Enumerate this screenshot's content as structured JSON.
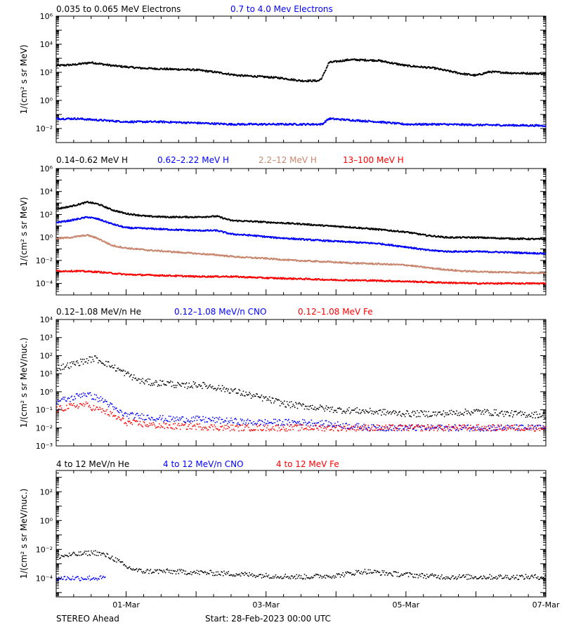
{
  "footer": {
    "spacecraft": "STEREO Ahead",
    "start": "Start: 28-Feb-2023 00:00 UTC"
  },
  "chart_data": [
    {
      "type": "line",
      "yscale": "log",
      "ylabel": "1/(cm² s sr MeV)",
      "ylim": [
        0.001,
        1000000
      ],
      "yticks": [
        {
          "value": 0.01,
          "label": "10⁻²"
        },
        {
          "value": 1,
          "label": "10⁰"
        },
        {
          "value": 100,
          "label": "10²"
        },
        {
          "value": 10000,
          "label": "10⁴"
        },
        {
          "value": 1000000,
          "label": "10⁶"
        }
      ],
      "xlim": [
        0,
        7
      ],
      "series": [
        {
          "name": "0.035 to 0.065 MeV Electrons",
          "color": "#000000",
          "x": [
            0,
            0.25,
            0.5,
            0.8,
            1.2,
            1.6,
            2.0,
            2.3,
            2.6,
            2.9,
            3.2,
            3.5,
            3.75,
            3.8,
            3.9,
            4.2,
            4.6,
            5.0,
            5.4,
            5.8,
            6.0,
            6.2,
            6.5,
            7.0
          ],
          "y": [
            300,
            350,
            500,
            300,
            200,
            170,
            150,
            100,
            60,
            50,
            40,
            25,
            25,
            40,
            500,
            800,
            700,
            300,
            200,
            80,
            60,
            110,
            90,
            80
          ]
        },
        {
          "name": "0.7 to 4.0 Mev Electrons",
          "color": "#0000ff",
          "x": [
            0,
            0.3,
            0.6,
            1.0,
            1.5,
            2.0,
            2.5,
            3.0,
            3.5,
            3.8,
            3.9,
            4.2,
            4.6,
            5.0,
            5.5,
            6.0,
            6.5,
            7.0
          ],
          "y": [
            0.05,
            0.05,
            0.04,
            0.03,
            0.03,
            0.025,
            0.02,
            0.02,
            0.02,
            0.02,
            0.05,
            0.04,
            0.03,
            0.02,
            0.02,
            0.018,
            0.017,
            0.016
          ]
        }
      ]
    },
    {
      "type": "line",
      "yscale": "log",
      "ylabel": "1/(cm² s sr MeV)",
      "ylim": [
        1e-05,
        1000000
      ],
      "yticks": [
        {
          "value": 0.0001,
          "label": "10⁻⁴"
        },
        {
          "value": 0.01,
          "label": "10⁻²"
        },
        {
          "value": 1,
          "label": "10⁰"
        },
        {
          "value": 100,
          "label": "10²"
        },
        {
          "value": 10000,
          "label": "10⁴"
        },
        {
          "value": 1000000,
          "label": "10⁶"
        }
      ],
      "xlim": [
        0,
        7
      ],
      "series": [
        {
          "name": "0.14–0.62 MeV H",
          "color": "#000000",
          "x": [
            0,
            0.2,
            0.45,
            0.6,
            0.8,
            1.0,
            1.3,
            1.6,
            2.0,
            2.3,
            2.5,
            2.8,
            3.1,
            3.5,
            3.9,
            4.2,
            4.6,
            5.0,
            5.3,
            5.6,
            6.0,
            6.5,
            7.0
          ],
          "y": [
            300,
            500,
            1200,
            800,
            250,
            120,
            70,
            60,
            60,
            70,
            30,
            25,
            20,
            15,
            10,
            8,
            5,
            3,
            1.5,
            1,
            1,
            0.8,
            0.7
          ]
        },
        {
          "name": "0.62–2.22 MeV H",
          "color": "#0000ff",
          "x": [
            0,
            0.2,
            0.45,
            0.6,
            0.8,
            1.0,
            1.3,
            1.6,
            2.0,
            2.3,
            2.5,
            2.8,
            3.1,
            3.5,
            3.9,
            4.2,
            4.6,
            5.0,
            5.3,
            5.6,
            6.0,
            6.5,
            7.0
          ],
          "y": [
            20,
            30,
            60,
            40,
            15,
            7,
            6,
            5,
            4,
            4,
            2,
            1.5,
            1,
            0.7,
            0.5,
            0.4,
            0.3,
            0.15,
            0.08,
            0.06,
            0.06,
            0.05,
            0.04
          ]
        },
        {
          "name": "2.2–12 MeV H",
          "color": "#c8876e",
          "x": [
            0,
            0.2,
            0.45,
            0.6,
            0.8,
            1.0,
            1.3,
            1.6,
            2.0,
            2.3,
            2.6,
            3.0,
            3.4,
            3.8,
            4.2,
            4.6,
            5.0,
            5.4,
            5.8,
            6.2,
            6.6,
            7.0
          ],
          "y": [
            0.8,
            1.0,
            1.6,
            0.8,
            0.2,
            0.12,
            0.08,
            0.06,
            0.04,
            0.03,
            0.02,
            0.015,
            0.01,
            0.008,
            0.006,
            0.005,
            0.004,
            0.002,
            0.0012,
            0.001,
            0.0009,
            0.0008
          ]
        },
        {
          "name": "13–100 MeV H",
          "color": "#ff0000",
          "x": [
            0,
            0.3,
            0.6,
            1.0,
            1.5,
            2.0,
            2.5,
            3.0,
            3.5,
            4.0,
            4.5,
            5.0,
            5.5,
            6.0,
            6.5,
            7.0
          ],
          "y": [
            0.0012,
            0.0012,
            0.001,
            0.0006,
            0.0005,
            0.0004,
            0.0004,
            0.0003,
            0.00025,
            0.0002,
            0.00018,
            0.00015,
            0.00012,
            0.0001,
            0.0001,
            0.0001
          ]
        }
      ]
    },
    {
      "type": "scatter",
      "yscale": "log",
      "ylabel": "1/(cm² s sr MeV/nuc.)",
      "ylim": [
        0.001,
        10000
      ],
      "yticks": [
        {
          "value": 0.001,
          "label": "10⁻³"
        },
        {
          "value": 0.01,
          "label": "10⁻²"
        },
        {
          "value": 0.1,
          "label": "10⁻¹"
        },
        {
          "value": 1,
          "label": "10⁰"
        },
        {
          "value": 10,
          "label": "10¹"
        },
        {
          "value": 100,
          "label": "10²"
        },
        {
          "value": 1000,
          "label": "10³"
        },
        {
          "value": 10000,
          "label": "10⁴"
        }
      ],
      "xlim": [
        0,
        7
      ],
      "series": [
        {
          "name": "0.12–1.08 MeV/n He",
          "color": "#000000",
          "x": [
            0,
            0.2,
            0.4,
            0.55,
            0.7,
            0.85,
            1.0,
            1.2,
            1.4,
            1.6,
            1.8,
            2.0,
            2.2,
            2.5,
            2.8,
            3.0,
            3.3,
            3.6,
            4.0,
            4.5,
            5.0,
            5.5,
            6.0,
            6.5,
            7.0
          ],
          "y": [
            20,
            30,
            50,
            70,
            40,
            20,
            10,
            4,
            3,
            3,
            2,
            2.5,
            2,
            1.2,
            0.6,
            0.4,
            0.2,
            0.15,
            0.1,
            0.08,
            0.06,
            0.06,
            0.08,
            0.06,
            0.05
          ]
        },
        {
          "name": "0.12–1.08 MeV/n CNO",
          "color": "#0000ff",
          "x": [
            0,
            0.2,
            0.4,
            0.55,
            0.7,
            0.85,
            1.0,
            1.3,
            1.6,
            2.0,
            2.4,
            2.8,
            3.2,
            3.6,
            4.0,
            4.5,
            5.0,
            5.5,
            6.0,
            6.5,
            7.0
          ],
          "y": [
            0.3,
            0.4,
            0.8,
            0.5,
            0.3,
            0.1,
            0.05,
            0.04,
            0.03,
            0.03,
            0.025,
            0.02,
            0.02,
            0.02,
            0.015,
            0.01,
            0.01,
            0.01,
            0.01,
            0.01,
            0.01
          ]
        },
        {
          "name": "0.12–1.08 MeV Fe",
          "color": "#ff0000",
          "x": [
            0,
            0.2,
            0.4,
            0.55,
            0.7,
            0.85,
            1.0,
            1.3,
            1.6,
            2.0,
            2.4,
            2.8,
            3.2,
            3.6,
            4.0,
            4.5,
            5.0,
            5.5,
            6.0,
            6.5,
            7.0
          ],
          "y": [
            0.1,
            0.15,
            0.2,
            0.12,
            0.08,
            0.04,
            0.02,
            0.015,
            0.012,
            0.012,
            0.01,
            0.01,
            0.01,
            0.01,
            0.01,
            0.01,
            0.01,
            0.01,
            0.01,
            0.01,
            0.01
          ]
        }
      ]
    },
    {
      "type": "scatter",
      "yscale": "log",
      "ylabel": "1/(cm² s sr MeV/nuc.)",
      "ylim": [
        5e-06,
        3000
      ],
      "yticks": [
        {
          "value": 0.0001,
          "label": "10⁻⁴"
        },
        {
          "value": 0.01,
          "label": "10⁻²"
        },
        {
          "value": 1,
          "label": "10⁰"
        },
        {
          "value": 100,
          "label": "10²"
        }
      ],
      "xlim": [
        0,
        7
      ],
      "xticks": [
        {
          "value": 1,
          "label": "01-Mar"
        },
        {
          "value": 3,
          "label": "03-Mar"
        },
        {
          "value": 5,
          "label": "05-Mar"
        },
        {
          "value": 7,
          "label": "07-Mar"
        }
      ],
      "series": [
        {
          "name": "4 to 12 MeV/n He",
          "color": "#000000",
          "x": [
            0,
            0.2,
            0.4,
            0.55,
            0.7,
            0.85,
            1.0,
            1.2,
            1.5,
            2.0,
            2.5,
            3.0,
            3.5,
            4.0,
            4.4,
            4.8,
            5.2,
            5.6,
            6.0,
            6.5,
            7.0
          ],
          "y": [
            0.003,
            0.004,
            0.005,
            0.006,
            0.004,
            0.002,
            0.0006,
            0.0003,
            0.0003,
            0.00025,
            0.0002,
            0.00015,
            0.00012,
            0.00015,
            0.0003,
            0.0002,
            0.00015,
            0.00012,
            0.00012,
            0.00012,
            0.00012
          ]
        },
        {
          "name": "4 to 12 MeV/n CNO",
          "color": "#0000ff",
          "x": [
            0,
            0.3,
            0.6,
            0.7
          ],
          "y": [
            0.0001,
            0.0001,
            0.0001,
            0.0001
          ]
        },
        {
          "name": "4 to 12 MeV Fe",
          "color": "#ff0000",
          "x": [],
          "y": []
        }
      ]
    }
  ]
}
